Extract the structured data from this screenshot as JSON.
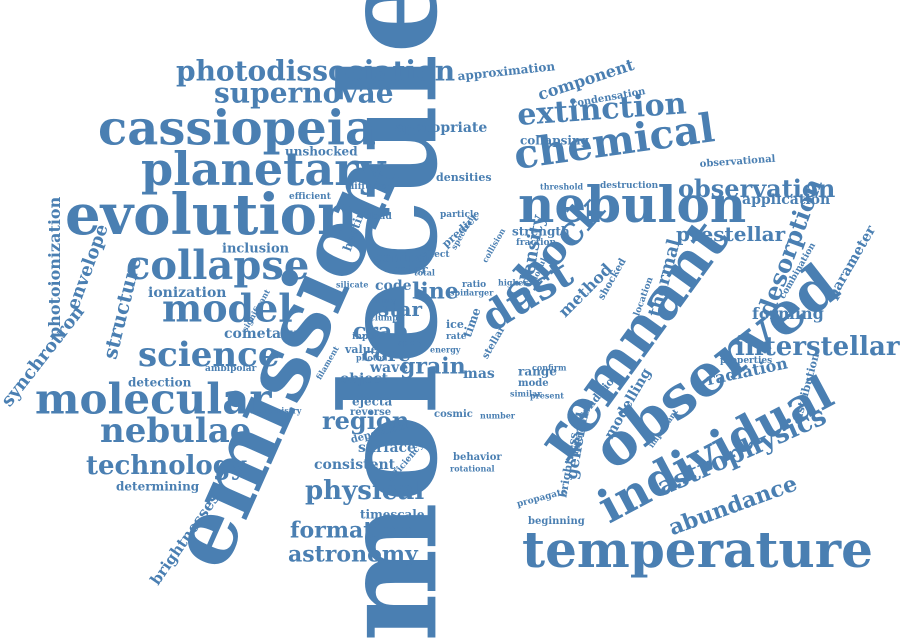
{
  "word_cloud": {
    "color": "#4a7fb2",
    "words": [
      "molecule",
      "emission",
      "remnant",
      "observed",
      "individual",
      "evolution",
      "nebulon",
      "temperature",
      "cassiopeia",
      "chemical",
      "planetary",
      "molecular",
      "collapse",
      "model",
      "shock",
      "dust",
      "science",
      "nebulae",
      "supernovae",
      "photodissociation",
      "extinction",
      "observation",
      "technology",
      "astrophysics",
      "abundance",
      "interstellar",
      "desorption",
      "formation",
      "astronomy",
      "physical",
      "region",
      "prestellar",
      "crab",
      "core",
      "star",
      "structure",
      "envelope",
      "synchrotron",
      "photoionization",
      "brightnesses",
      "ionization",
      "inclusion",
      "detection",
      "determining",
      "cometary",
      "ambipolar",
      "chemistry",
      "component",
      "approximation",
      "condensation",
      "collapsing",
      "appropriate",
      "unshocked",
      "diffusion",
      "efficient",
      "heating",
      "densities",
      "particle",
      "predict",
      "destruction",
      "threshold",
      "application",
      "parameter",
      "forming",
      "radiation",
      "distribution",
      "properties",
      "combination",
      "observational",
      "thermal",
      "density",
      "method",
      "shocked",
      "central",
      "water",
      "line",
      "code",
      "grain",
      "wave",
      "object",
      "mas",
      "range",
      "mode",
      "ejecta",
      "surface",
      "consistent",
      "timescale",
      "behavior",
      "rotational",
      "cosmic",
      "number",
      "general",
      "modelling",
      "condition",
      "brightness",
      "unknown",
      "important",
      "propagate",
      "beginning",
      "strength",
      "fraction",
      "ratio",
      "effect",
      "value",
      "input",
      "ice",
      "rate",
      "stellar",
      "reverse",
      "dependent",
      "efficiency",
      "filament",
      "significant",
      "location",
      "present",
      "similar",
      "spectral",
      "collision",
      "larger",
      "spin",
      "total",
      "silicate",
      "dusty",
      "clump",
      "cloud",
      "energy",
      "apply",
      "photon",
      "higher",
      "globule",
      "confirm",
      "time"
    ]
  }
}
